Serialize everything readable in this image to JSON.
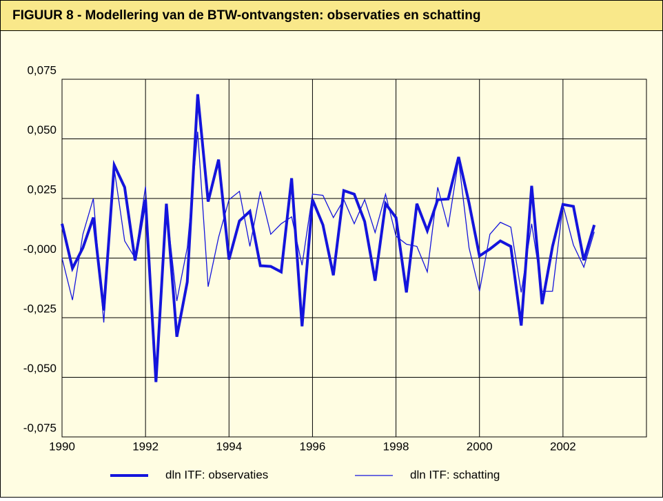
{
  "chart_data": {
    "type": "line",
    "title": "FIGUUR 8 -   Modellering van de BTW-ontvangsten: observaties en schatting",
    "x": [
      1990,
      1990.25,
      1990.5,
      1990.75,
      1991,
      1991.25,
      1991.5,
      1991.75,
      1992,
      1992.25,
      1992.5,
      1992.75,
      1993,
      1993.25,
      1993.5,
      1993.75,
      1994,
      1994.25,
      1994.5,
      1994.75,
      1995,
      1995.25,
      1995.5,
      1995.75,
      1996,
      1996.25,
      1996.5,
      1996.75,
      1997,
      1997.25,
      1997.5,
      1997.75,
      1998,
      1998.25,
      1998.5,
      1998.75,
      1999,
      1999.25,
      1999.5,
      1999.75,
      2000,
      2000.25,
      2000.5,
      2000.75,
      2001,
      2001.25,
      2001.5,
      2001.75,
      2002,
      2002.25,
      2002.5,
      2002.75
    ],
    "series": [
      {
        "name": "dln ITF: observaties",
        "color": "#1414dc",
        "width": 4,
        "values": [
          0.0144,
          -0.0043,
          0.0043,
          0.017,
          -0.022,
          0.039,
          0.0297,
          -0.001,
          0.0245,
          -0.052,
          0.0228,
          -0.033,
          -0.01,
          0.0687,
          0.0237,
          0.0413,
          -0.0006,
          0.0156,
          0.0196,
          -0.0032,
          -0.0035,
          -0.0058,
          0.0335,
          -0.0286,
          0.0245,
          0.0139,
          -0.0072,
          0.0283,
          0.0268,
          0.0153,
          -0.0095,
          0.0228,
          0.017,
          -0.0144,
          0.0228,
          0.0115,
          0.0245,
          0.0248,
          0.0424,
          0.0231,
          0.0009,
          0.0038,
          0.0072,
          0.0049,
          -0.0283,
          0.0303,
          -0.0193,
          0.0049,
          0.0225,
          0.0217,
          -0.0009,
          0.0139
        ]
      },
      {
        "name": "dln ITF: schatting",
        "color": "#1414dc",
        "width": 1.3,
        "values": [
          0,
          -0.0176,
          0.01,
          0.025,
          -0.027,
          0.0375,
          0.0072,
          0,
          0.03,
          -0.048,
          0.0217,
          -0.018,
          0.0043,
          0.053,
          -0.012,
          0.0087,
          0.0245,
          0.028,
          0.0049,
          0.028,
          0.01,
          0.0144,
          0.0173,
          -0.003,
          0.0268,
          0.0263,
          0.017,
          0.0245,
          0.0144,
          0.0245,
          0.0107,
          0.0268,
          0.0092,
          0.0058,
          0.0049,
          -0.0058,
          0.0297,
          0.013,
          0.0413,
          0.0043,
          -0.0139,
          0.01,
          0.015,
          0.013,
          -0.0144,
          0.0144,
          -0.0139,
          -0.0139,
          0.0222,
          0.0055,
          -0.0038,
          0.011
        ]
      }
    ],
    "xlim": [
      1990,
      2004
    ],
    "xticks": [
      1990,
      1992,
      1994,
      1996,
      1998,
      2000,
      2002
    ],
    "ylim": [
      -0.075,
      0.075
    ],
    "yticks": [
      {
        "value": -0.075,
        "label": "-0,075"
      },
      {
        "value": -0.05,
        "label": "-0,050"
      },
      {
        "value": -0.025,
        "label": "-0,025"
      },
      {
        "value": 0,
        "label": "-0,000"
      },
      {
        "value": 0.025,
        "label": "0,025"
      },
      {
        "value": 0.05,
        "label": "0,050"
      },
      {
        "value": 0.075,
        "label": "0,075"
      }
    ],
    "grid": true,
    "legend": "bottom"
  }
}
